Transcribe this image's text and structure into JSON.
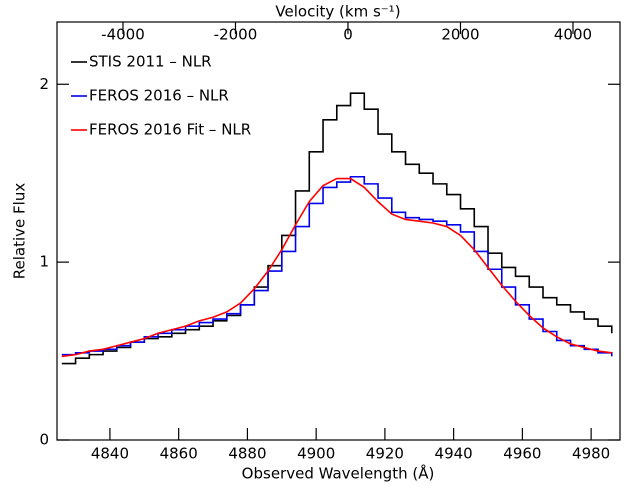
{
  "chart_data": {
    "type": "line",
    "xlabel": "Observed Wavelength (Å)",
    "ylabel": "Relative Flux",
    "x2label": "Velocity (km s⁻¹)",
    "xlim": [
      4824.6,
      4988.4
    ],
    "xticks": [
      4840,
      4860,
      4880,
      4900,
      4920,
      4940,
      4960,
      4980
    ],
    "x2lim": [
      -5173,
      4836
    ],
    "x2ticks": [
      -4000,
      -2000,
      0,
      2000,
      4000
    ],
    "ylim": [
      0,
      2.35
    ],
    "yticks": [
      0,
      1,
      2
    ],
    "legend": "top-left",
    "x": [
      4826,
      4830,
      4834,
      4838,
      4842,
      4846,
      4850,
      4854,
      4858,
      4862,
      4866,
      4870,
      4874,
      4878,
      4882,
      4886,
      4890,
      4894,
      4898,
      4902,
      4906,
      4910,
      4914,
      4918,
      4922,
      4926,
      4930,
      4934,
      4938,
      4942,
      4946,
      4950,
      4954,
      4958,
      4962,
      4966,
      4970,
      4974,
      4978,
      4982,
      4986
    ],
    "series": [
      {
        "name": "STIS 2011 – NLR",
        "color": "#000000",
        "steps": true,
        "values": [
          0.43,
          0.46,
          0.48,
          0.5,
          0.52,
          0.55,
          0.57,
          0.58,
          0.6,
          0.62,
          0.64,
          0.67,
          0.7,
          0.76,
          0.86,
          0.98,
          1.15,
          1.4,
          1.62,
          1.8,
          1.88,
          1.95,
          1.86,
          1.72,
          1.62,
          1.55,
          1.5,
          1.44,
          1.38,
          1.3,
          1.2,
          1.05,
          0.97,
          0.92,
          0.86,
          0.8,
          0.76,
          0.72,
          0.68,
          0.64,
          0.6
        ]
      },
      {
        "name": "FEROS 2016 – NLR",
        "color": "#0000ee",
        "steps": true,
        "values": [
          0.48,
          0.49,
          0.5,
          0.51,
          0.53,
          0.55,
          0.58,
          0.6,
          0.62,
          0.64,
          0.66,
          0.68,
          0.71,
          0.76,
          0.84,
          0.95,
          1.06,
          1.2,
          1.33,
          1.42,
          1.45,
          1.48,
          1.44,
          1.36,
          1.28,
          1.25,
          1.24,
          1.23,
          1.21,
          1.17,
          1.06,
          0.96,
          0.86,
          0.76,
          0.68,
          0.61,
          0.56,
          0.53,
          0.51,
          0.49,
          0.47
        ]
      },
      {
        "name": "FEROS 2016 Fit – NLR",
        "color": "#ff0000",
        "steps": false,
        "values": [
          0.47,
          0.48,
          0.5,
          0.51,
          0.53,
          0.55,
          0.57,
          0.6,
          0.62,
          0.64,
          0.67,
          0.69,
          0.72,
          0.77,
          0.85,
          0.95,
          1.07,
          1.21,
          1.34,
          1.43,
          1.47,
          1.47,
          1.42,
          1.34,
          1.27,
          1.24,
          1.23,
          1.22,
          1.2,
          1.15,
          1.07,
          0.97,
          0.87,
          0.78,
          0.7,
          0.63,
          0.58,
          0.54,
          0.52,
          0.5,
          0.49
        ]
      }
    ]
  }
}
